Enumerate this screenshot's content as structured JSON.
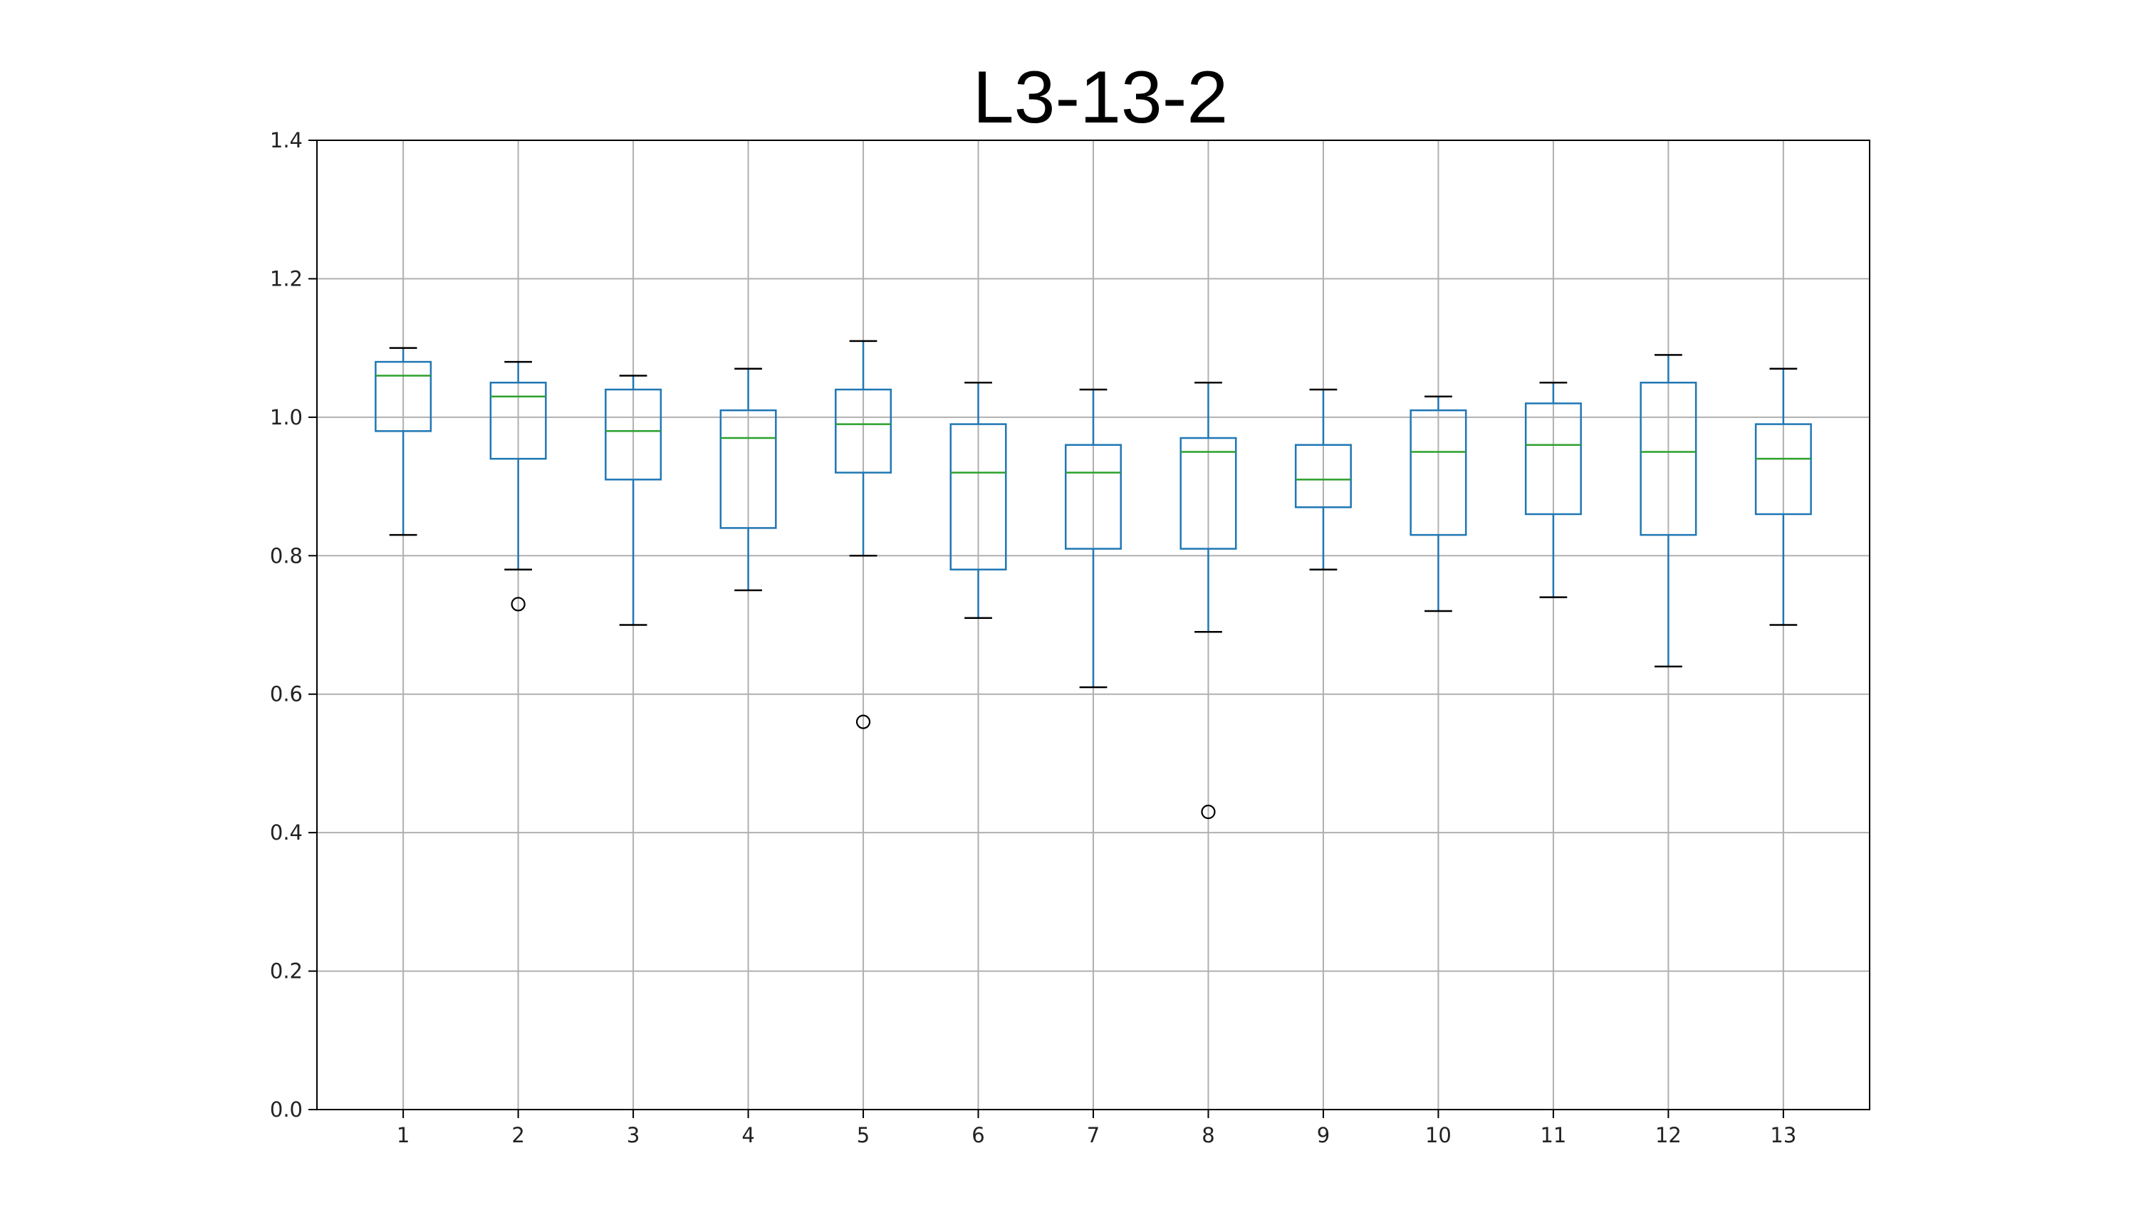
{
  "chart_data": {
    "type": "boxplot",
    "title": "L3-13-2",
    "xlabel": "",
    "ylabel": "",
    "categories": [
      "1",
      "2",
      "3",
      "4",
      "5",
      "6",
      "7",
      "8",
      "9",
      "10",
      "11",
      "12",
      "13"
    ],
    "ylim": [
      0.0,
      1.4
    ],
    "yticks": [
      "0.0",
      "0.2",
      "0.4",
      "0.6",
      "0.8",
      "1.0",
      "1.2",
      "1.4"
    ],
    "grid": true,
    "boxes": [
      {
        "whislo": 0.83,
        "q1": 0.98,
        "med": 1.06,
        "q3": 1.08,
        "whishi": 1.1,
        "fliers": []
      },
      {
        "whislo": 0.78,
        "q1": 0.94,
        "med": 1.03,
        "q3": 1.05,
        "whishi": 1.08,
        "fliers": [
          0.73
        ]
      },
      {
        "whislo": 0.7,
        "q1": 0.91,
        "med": 0.98,
        "q3": 1.04,
        "whishi": 1.06,
        "fliers": []
      },
      {
        "whislo": 0.75,
        "q1": 0.84,
        "med": 0.97,
        "q3": 1.01,
        "whishi": 1.07,
        "fliers": []
      },
      {
        "whislo": 0.8,
        "q1": 0.92,
        "med": 0.99,
        "q3": 1.04,
        "whishi": 1.11,
        "fliers": [
          0.56
        ]
      },
      {
        "whislo": 0.71,
        "q1": 0.78,
        "med": 0.92,
        "q3": 0.99,
        "whishi": 1.05,
        "fliers": []
      },
      {
        "whislo": 0.61,
        "q1": 0.81,
        "med": 0.92,
        "q3": 0.96,
        "whishi": 1.04,
        "fliers": []
      },
      {
        "whislo": 0.69,
        "q1": 0.81,
        "med": 0.95,
        "q3": 0.97,
        "whishi": 1.05,
        "fliers": [
          0.43
        ]
      },
      {
        "whislo": 0.78,
        "q1": 0.87,
        "med": 0.91,
        "q3": 0.96,
        "whishi": 1.04,
        "fliers": []
      },
      {
        "whislo": 0.72,
        "q1": 0.83,
        "med": 0.95,
        "q3": 1.01,
        "whishi": 1.03,
        "fliers": []
      },
      {
        "whislo": 0.74,
        "q1": 0.86,
        "med": 0.96,
        "q3": 1.02,
        "whishi": 1.05,
        "fliers": []
      },
      {
        "whislo": 0.64,
        "q1": 0.83,
        "med": 0.95,
        "q3": 1.05,
        "whishi": 1.09,
        "fliers": []
      },
      {
        "whislo": 0.7,
        "q1": 0.86,
        "med": 0.94,
        "q3": 0.99,
        "whishi": 1.07,
        "fliers": []
      }
    ],
    "colors": {
      "box": "#1f77b4",
      "median": "#2ca02c",
      "whisker_cap": "#000000",
      "flier": "#000000",
      "grid": "#b0b0b0",
      "axes": "#000000"
    }
  }
}
